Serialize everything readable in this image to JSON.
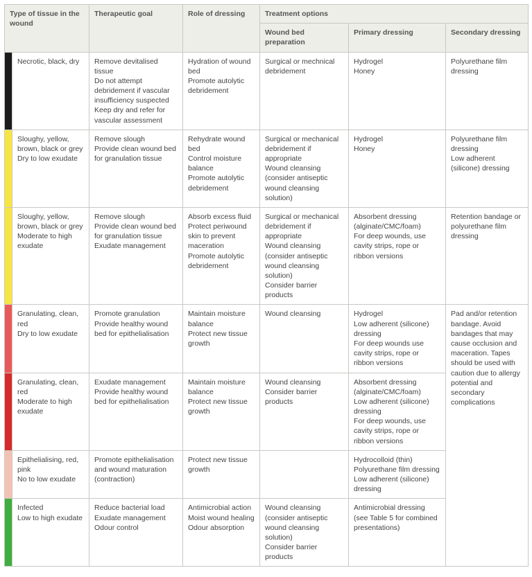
{
  "headers": {
    "tissue": "Type of tissue in the wound",
    "goal": "Therapeutic goal",
    "role": "Role of dressing",
    "treatment": "Treatment options",
    "prep": "Wound bed preparation",
    "primary": "Primary dressing",
    "secondary": "Secondary dressing"
  },
  "rows": [
    {
      "color": "#1c1c1c",
      "tissue": "Necrotic, black, dry",
      "goal": "Remove devitalised tissue\nDo not attempt debridement if vascular insufficiency suspected\nKeep dry and refer for vascular assessment",
      "role": "Hydration of wound bed\nPromote autolytic debridement",
      "prep": "Surgical or mechnical debridement",
      "primary": "Hydrogel\nHoney",
      "secondary": "Polyurethane film dressing"
    },
    {
      "color": "#f7e542",
      "tissue": "Sloughy, yellow, brown, black or grey\nDry to low exudate",
      "goal": "Remove slough\nProvide clean wound bed for granulation tissue",
      "role": "Rehydrate wound bed\nControl moisture balance\nPromote autolytic debridement",
      "prep": "Surgical or mechanical debridement if appropriate\nWound cleansing (consider antiseptic wound cleansing solution)",
      "primary": "Hydrogel\nHoney",
      "secondary": "Polyurethane film dressing\nLow adherent (silicone) dressing"
    },
    {
      "color": "#f7e542",
      "tissue": "Sloughy, yellow, brown, black or grey\nModerate to high exudate",
      "goal": "Remove slough\nProvide clean wound bed for granulation tissue\nExudate management",
      "role": "Absorb excess fluid\nProtect periwound skin to prevent maceration\nPromote autolytic debridement",
      "prep": "Surgical or mechanical debridement if appropriate\nWound cleansing (consider antiseptic wound cleansing solution)\nConsider barrier products",
      "primary": "Absorbent dressing (alginate/CMC/foam)\nFor deep wounds, use cavity strips, rope or ribbon versions",
      "secondary": "Retention bandage or polyurethane film dressing"
    },
    {
      "color": "#e85a5a",
      "tissue": "Granulating, clean, red\nDry to low exudate",
      "goal": "Promote granulation\nProvide healthy wound bed for epithelialisation",
      "role": "Maintain moisture balance\nProtect new tissue growth",
      "prep": "Wound cleansing",
      "primary": "Hydrogel\nLow adherent (silicone) dressing\nFor deep wounds use cavity strips, rope or ribbon versions"
    },
    {
      "color": "#d52b2b",
      "tissue": "Granulating, clean, red\nModerate to high exudate",
      "goal": "Exudate management\nProvide healthy wound bed for epithelialisation",
      "role": "Maintain moisture balance\nProtect new tissue growth",
      "prep": "Wound cleansing\nConsider barrier products",
      "primary": "Absorbent dressing (alginate/CMC/foam)\nLow adherent (silicone) dressing\nFor deep wounds, use cavity strips, rope or ribbon versions"
    },
    {
      "color": "#f4c2b5",
      "tissue": "Epithelialising, red, pink\nNo to low exudate",
      "goal": "Promote epithelialisation and wound maturation (contraction)",
      "role": "Protect new tissue growth",
      "prep": "",
      "primary": "Hydrocolloid (thin)\nPolyurethane film dressing\nLow adherent (silicone) dressing"
    },
    {
      "color": "#3fae3f",
      "tissue": "Infected\nLow to high exudate",
      "goal": "Reduce bacterial load\nExudate management\nOdour control",
      "role": "Antimicrobial action\nMoist wound healing\nOdour absorption",
      "prep": "Wound cleansing (consider antiseptic wound cleansing solution)\nConsider barrier products",
      "primary": "Antimicrobial dressing (see Table 5 for combined presentations)"
    }
  ],
  "merged_secondary": "Pad and/or retention bandage. Avoid bandages that may cause occlusion and maceration. Tapes should be used with caution due to allergy potential and secondary complications"
}
